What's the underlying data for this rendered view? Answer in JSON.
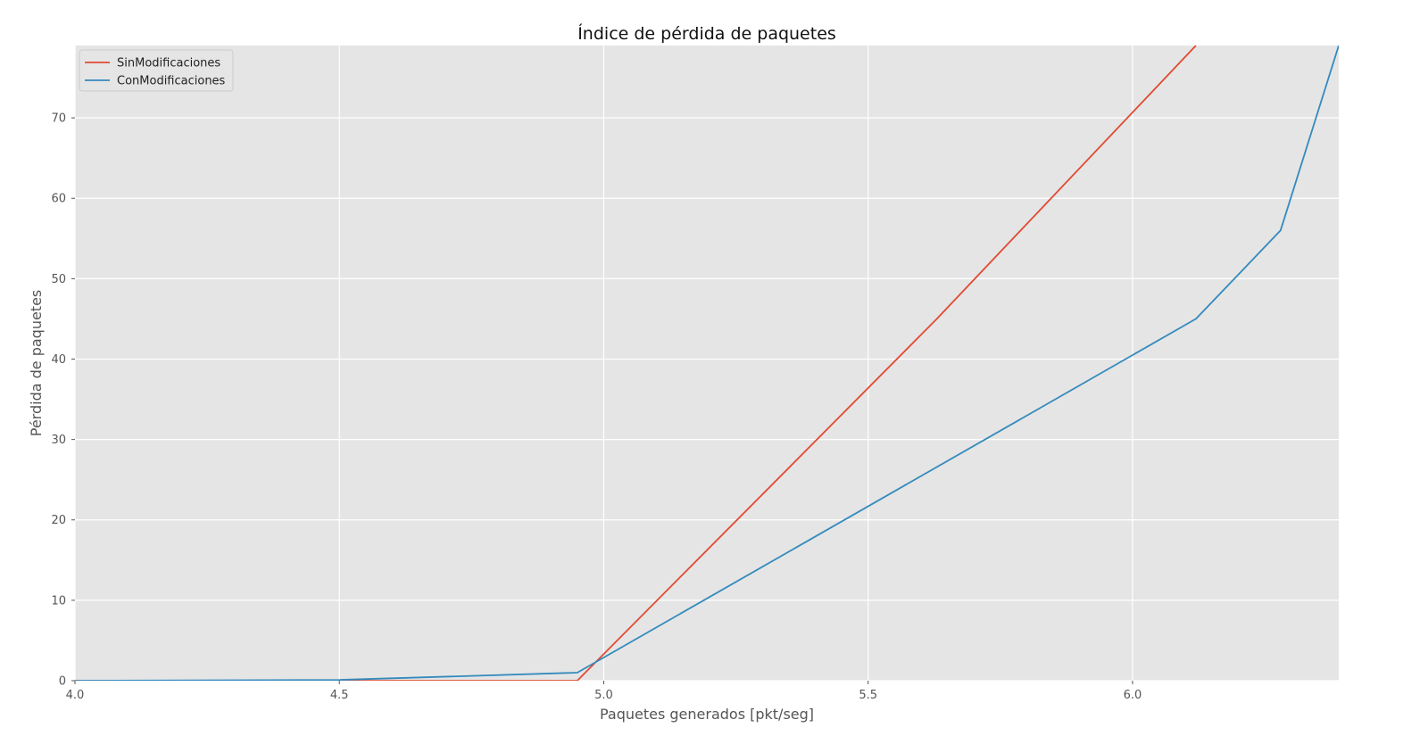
{
  "chart_data": {
    "type": "line",
    "title": "Índice de pérdida de paquetes",
    "xlabel": "Paquetes generados [pkt/seg]",
    "ylabel": "Pérdida de paquetes",
    "xlim": [
      4.0,
      6.39
    ],
    "ylim": [
      0,
      79
    ],
    "xticks": [
      4.0,
      4.5,
      5.0,
      5.5,
      6.0
    ],
    "xtick_labels": [
      "4.0",
      "4.5",
      "5.0",
      "5.5",
      "6.0"
    ],
    "yticks": [
      0,
      10,
      20,
      30,
      40,
      50,
      60,
      70
    ],
    "ytick_labels": [
      "0",
      "10",
      "20",
      "30",
      "40",
      "50",
      "60",
      "70"
    ],
    "grid": true,
    "legend_position": "top-left",
    "style": {
      "plot_background": "#e5e5e5",
      "grid_color": "#ffffff"
    },
    "series": [
      {
        "name": "SinModificaciones",
        "color": "#e24a33",
        "x": [
          4.0,
          4.5,
          4.95,
          5.63,
          6.12
        ],
        "y": [
          0,
          0,
          0,
          45,
          79
        ]
      },
      {
        "name": "ConModificaciones",
        "color": "#348abd",
        "x": [
          4.0,
          4.5,
          4.95,
          6.12,
          6.28,
          6.39
        ],
        "y": [
          0,
          0.1,
          1,
          45,
          56,
          79
        ]
      }
    ]
  }
}
